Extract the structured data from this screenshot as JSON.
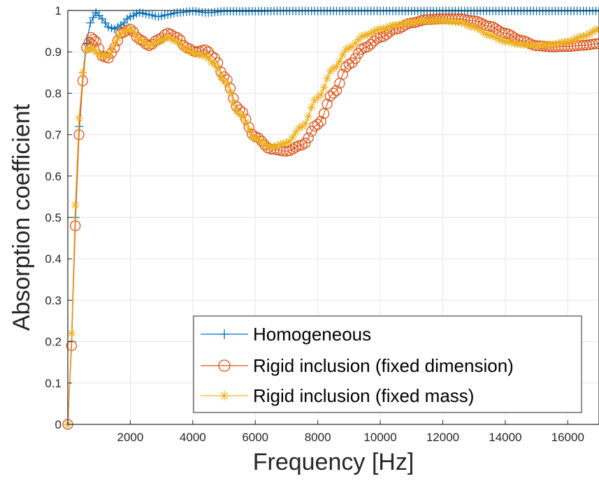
{
  "chart_data": {
    "type": "line",
    "title": "",
    "xlabel": "Frequency [Hz]",
    "ylabel": "Absorption coefficient",
    "xlim": [
      0,
      17000
    ],
    "ylim": [
      0,
      1
    ],
    "xticks": [
      2000,
      4000,
      6000,
      8000,
      10000,
      12000,
      14000,
      16000
    ],
    "yticks": [
      0,
      0.1,
      0.2,
      0.3,
      0.4,
      0.5,
      0.6,
      0.7,
      0.8,
      0.9,
      1
    ],
    "xtick_labels": [
      "2000",
      "4000",
      "6000",
      "8000",
      "10000",
      "12000",
      "14000",
      "16000"
    ],
    "ytick_labels": [
      "0",
      "0.1",
      "0.2",
      "0.3",
      "0.4",
      "0.5",
      "0.6",
      "0.7",
      "0.8",
      "0.9",
      "1"
    ],
    "grid": true,
    "legend_position": "bottom-right",
    "series": [
      {
        "name": "Homogeneous",
        "color": "#0072BD",
        "marker": "plus",
        "x": [
          0,
          120,
          240,
          360,
          480,
          600,
          720,
          900,
          1100,
          1300,
          1500,
          1700,
          2000,
          2300,
          2600,
          2900,
          3200,
          3500,
          4000,
          4500,
          5000,
          6000,
          7000,
          8000,
          9000,
          10000,
          11000,
          12000,
          13000,
          14000,
          15000,
          16000,
          17000
        ],
        "y": [
          0,
          0.2,
          0.5,
          0.72,
          0.85,
          0.92,
          0.97,
          0.995,
          0.98,
          0.96,
          0.955,
          0.965,
          0.985,
          0.995,
          0.99,
          0.985,
          0.99,
          0.995,
          0.998,
          0.995,
          0.998,
          0.998,
          0.999,
          0.999,
          0.999,
          0.999,
          0.999,
          0.999,
          0.999,
          0.999,
          0.999,
          0.999,
          0.999
        ]
      },
      {
        "name": "Rigid inclusion (fixed dimension)",
        "color": "#D95319",
        "marker": "circle",
        "x": [
          0,
          120,
          240,
          360,
          480,
          600,
          750,
          900,
          1100,
          1300,
          1500,
          1700,
          2000,
          2300,
          2600,
          2900,
          3200,
          3500,
          3800,
          4100,
          4400,
          4700,
          5000,
          5500,
          6000,
          6500,
          7000,
          7500,
          8000,
          8500,
          9000,
          9500,
          10000,
          10500,
          11000,
          11500,
          12000,
          12500,
          13000,
          13500,
          14000,
          14500,
          15000,
          15500,
          16000,
          16500,
          17000
        ],
        "y": [
          0,
          0.19,
          0.48,
          0.7,
          0.83,
          0.91,
          0.935,
          0.925,
          0.89,
          0.885,
          0.91,
          0.945,
          0.955,
          0.93,
          0.915,
          0.93,
          0.945,
          0.935,
          0.91,
          0.9,
          0.905,
          0.885,
          0.84,
          0.76,
          0.695,
          0.665,
          0.66,
          0.675,
          0.725,
          0.8,
          0.87,
          0.91,
          0.935,
          0.955,
          0.97,
          0.978,
          0.98,
          0.98,
          0.975,
          0.962,
          0.945,
          0.928,
          0.915,
          0.912,
          0.913,
          0.916,
          0.92
        ]
      },
      {
        "name": "Rigid inclusion (fixed mass)",
        "color": "#EDB120",
        "marker": "asterisk",
        "x": [
          0,
          120,
          240,
          360,
          480,
          600,
          750,
          900,
          1100,
          1300,
          1500,
          1700,
          2000,
          2300,
          2600,
          2900,
          3200,
          3500,
          3800,
          4100,
          4400,
          4700,
          5000,
          5500,
          6000,
          6500,
          7000,
          7500,
          8000,
          8500,
          9000,
          9500,
          10000,
          10500,
          11000,
          11500,
          12000,
          12500,
          13000,
          13500,
          14000,
          14500,
          15000,
          15500,
          16000,
          16500,
          17000
        ],
        "y": [
          0,
          0.22,
          0.53,
          0.74,
          0.85,
          0.905,
          0.91,
          0.9,
          0.89,
          0.89,
          0.92,
          0.945,
          0.955,
          0.93,
          0.915,
          0.925,
          0.935,
          0.925,
          0.905,
          0.895,
          0.89,
          0.87,
          0.83,
          0.75,
          0.69,
          0.67,
          0.68,
          0.72,
          0.79,
          0.86,
          0.91,
          0.94,
          0.955,
          0.965,
          0.972,
          0.975,
          0.975,
          0.972,
          0.96,
          0.94,
          0.925,
          0.918,
          0.915,
          0.918,
          0.925,
          0.938,
          0.955
        ]
      }
    ]
  }
}
